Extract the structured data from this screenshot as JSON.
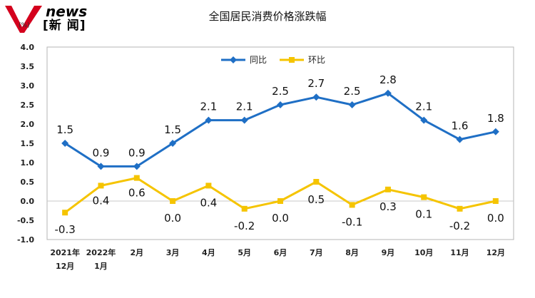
{
  "logo": {
    "text_en": "news",
    "text_cn": "[新 闻]"
  },
  "chart_data": {
    "type": "line",
    "title": "全国居民消费价格涨跌幅",
    "unit": "(%)",
    "categories": [
      [
        "2021年",
        "12月"
      ],
      [
        "2022年",
        "1月"
      ],
      [
        "2月"
      ],
      [
        "3月"
      ],
      [
        "4月"
      ],
      [
        "5月"
      ],
      [
        "6月"
      ],
      [
        "7月"
      ],
      [
        "8月"
      ],
      [
        "9月"
      ],
      [
        "10月"
      ],
      [
        "11月"
      ],
      [
        "12月"
      ]
    ],
    "ylim": [
      -1.0,
      4.0
    ],
    "yticks": [
      "4.0",
      "3.5",
      "3.0",
      "2.5",
      "2.0",
      "1.5",
      "1.0",
      "0.5",
      "0.0",
      "-0.5",
      "-1.0"
    ],
    "legend_position": "top-center",
    "series": [
      {
        "name": "同比",
        "color": "#1f6fc5",
        "marker": "diamond",
        "values": [
          1.5,
          0.9,
          0.9,
          1.5,
          2.1,
          2.1,
          2.5,
          2.7,
          2.5,
          2.8,
          2.1,
          1.6,
          1.8
        ],
        "labels": [
          "1.5",
          "0.9",
          "0.9",
          "1.5",
          "2.1",
          "2.1",
          "2.5",
          "2.7",
          "2.5",
          "2.8",
          "2.1",
          "1.6",
          "1.8"
        ]
      },
      {
        "name": "环比",
        "color": "#f5c400",
        "marker": "square",
        "values": [
          -0.3,
          0.4,
          0.6,
          0.0,
          0.4,
          -0.2,
          0.0,
          0.5,
          -0.1,
          0.3,
          0.1,
          -0.2,
          0.0
        ],
        "labels": [
          "-0.3",
          "0.4",
          "0.6",
          "0.0",
          "0.4",
          "-0.2",
          "0.0",
          "0.5",
          "-0.1",
          "0.3",
          "0.1",
          "-0.2",
          "0.0"
        ]
      }
    ]
  }
}
